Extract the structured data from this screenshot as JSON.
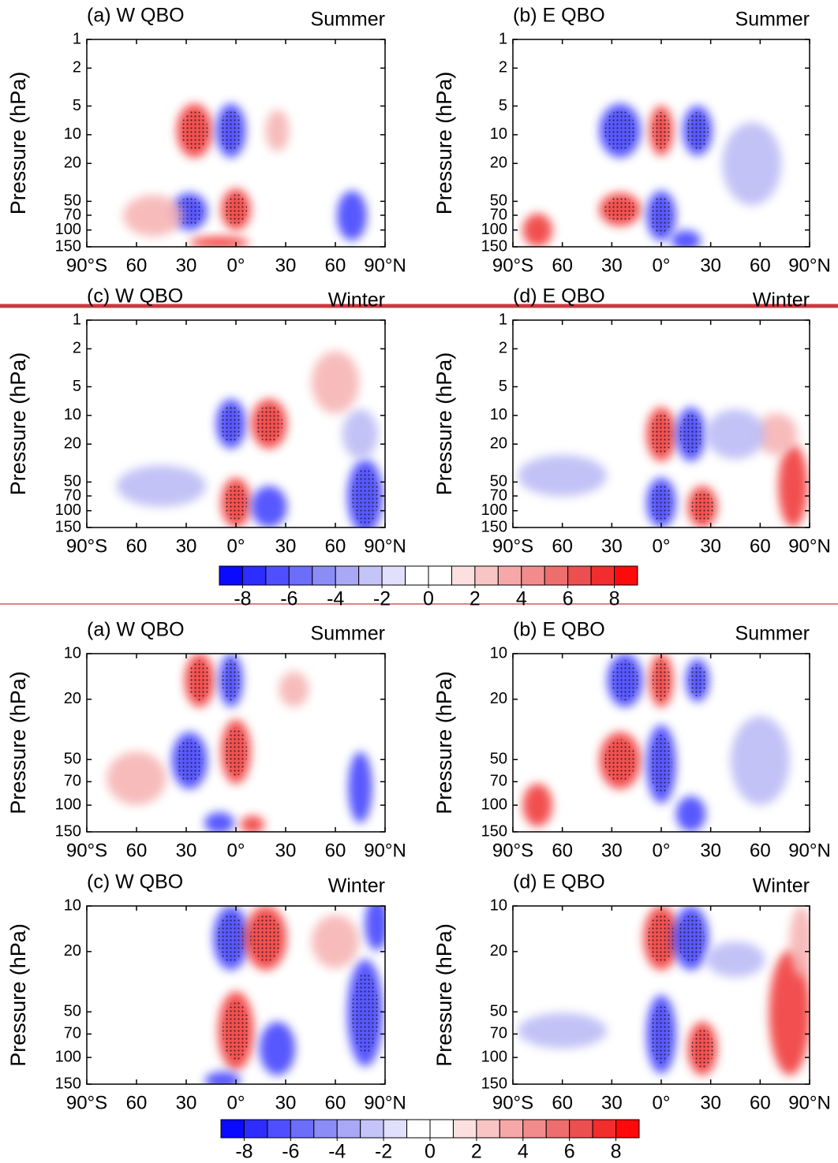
{
  "chart_data": [
    {
      "type": "contour",
      "title": "(a) W QBO",
      "annotation": "Summer",
      "y_label": "Pressure (hPa)",
      "log_y": true,
      "xlim": [
        -90,
        90
      ],
      "xticks": [
        {
          "value": -90,
          "label": "90°S"
        },
        {
          "value": -60,
          "label": "60"
        },
        {
          "value": -30,
          "label": "30"
        },
        {
          "value": 0,
          "label": "0°"
        },
        30,
        60,
        {
          "value": 90,
          "label": "90°N"
        }
      ],
      "ylim": [
        150,
        1
      ],
      "yticks": [
        1,
        2,
        5,
        10,
        20,
        50,
        70,
        100,
        150
      ]
    },
    {
      "type": "contour",
      "title": "(b) E QBO",
      "annotation": "Summer",
      "y_label": "Pressure (hPa)",
      "log_y": true,
      "xlim": [
        -90,
        90
      ],
      "xticks": [
        {
          "value": -90,
          "label": "90°S"
        },
        {
          "value": -60,
          "label": "60"
        },
        {
          "value": -30,
          "label": "30"
        },
        {
          "value": 0,
          "label": "0°"
        },
        30,
        60,
        {
          "value": 90,
          "label": "90°N"
        }
      ],
      "ylim": [
        150,
        1
      ],
      "yticks": [
        1,
        2,
        5,
        10,
        20,
        50,
        70,
        100,
        150
      ]
    },
    {
      "type": "contour",
      "title": "(c) W QBO",
      "annotation": "Winter",
      "y_label": "Pressure (hPa)",
      "log_y": true,
      "xlim": [
        -90,
        90
      ],
      "xticks": [
        {
          "value": -90,
          "label": "90°S"
        },
        {
          "value": -60,
          "label": "60"
        },
        {
          "value": -30,
          "label": "30"
        },
        {
          "value": 0,
          "label": "0°"
        },
        30,
        60,
        {
          "value": 90,
          "label": "90°N"
        }
      ],
      "ylim": [
        150,
        1
      ],
      "yticks": [
        1,
        2,
        5,
        10,
        20,
        50,
        70,
        100,
        150
      ]
    },
    {
      "type": "contour",
      "title": "(d) E QBO",
      "annotation": "Winter",
      "y_label": "Pressure (hPa)",
      "log_y": true,
      "xlim": [
        -90,
        90
      ],
      "xticks": [
        {
          "value": -90,
          "label": "90°S"
        },
        {
          "value": -60,
          "label": "60"
        },
        {
          "value": -30,
          "label": "30"
        },
        {
          "value": 0,
          "label": "0°"
        },
        30,
        60,
        {
          "value": 90,
          "label": "90°N"
        }
      ],
      "ylim": [
        150,
        1
      ],
      "yticks": [
        1,
        2,
        5,
        10,
        20,
        50,
        70,
        100,
        150
      ]
    },
    {
      "type": "colorbar",
      "xlim": [
        -9,
        9
      ],
      "xticks": [
        -8,
        -6,
        -4,
        -2,
        0,
        2,
        4,
        6,
        8
      ],
      "colors": [
        "#0a0aff",
        "#2d2dff",
        "#4f4fff",
        "#6d6dfb",
        "#8c8cf7",
        "#a8a8f6",
        "#c4c4f9",
        "#e0e0fc",
        "#ffffff",
        "#ffffff",
        "#fce0e0",
        "#f9c4c4",
        "#f6a8a8",
        "#f28c8c",
        "#ee6e6e",
        "#ec4f4f",
        "#f22d2d",
        "#ff0a0a"
      ]
    },
    {
      "type": "contour",
      "title": "(a) W QBO",
      "annotation": "Summer",
      "y_label": "Pressure (hPa)",
      "log_y": true,
      "xlim": [
        -90,
        90
      ],
      "xticks": [
        {
          "value": -90,
          "label": "90°S"
        },
        {
          "value": -60,
          "label": "60"
        },
        {
          "value": -30,
          "label": "30"
        },
        {
          "value": 0,
          "label": "0°"
        },
        30,
        60,
        {
          "value": 90,
          "label": "90°N"
        }
      ],
      "ylim": [
        150,
        10
      ],
      "yticks": [
        10,
        20,
        50,
        70,
        100,
        150
      ]
    },
    {
      "type": "contour",
      "title": "(b) E QBO",
      "annotation": "Summer",
      "y_label": "Pressure (hPa)",
      "log_y": true,
      "xlim": [
        -90,
        90
      ],
      "xticks": [
        {
          "value": -90,
          "label": "90°S"
        },
        {
          "value": -60,
          "label": "60"
        },
        {
          "value": -30,
          "label": "30"
        },
        {
          "value": 0,
          "label": "0°"
        },
        30,
        60,
        {
          "value": 90,
          "label": "90°N"
        }
      ],
      "ylim": [
        150,
        10
      ],
      "yticks": [
        10,
        20,
        50,
        70,
        100,
        150
      ]
    },
    {
      "type": "contour",
      "title": "(c) W QBO",
      "annotation": "Winter",
      "y_label": "Pressure (hPa)",
      "log_y": true,
      "xlim": [
        -90,
        90
      ],
      "xticks": [
        {
          "value": -90,
          "label": "90°S"
        },
        {
          "value": -60,
          "label": "60"
        },
        {
          "value": -30,
          "label": "30"
        },
        {
          "value": 0,
          "label": "0°"
        },
        30,
        60,
        {
          "value": 90,
          "label": "90°N"
        }
      ],
      "ylim": [
        150,
        10
      ],
      "yticks": [
        10,
        20,
        50,
        70,
        100,
        150
      ]
    },
    {
      "type": "contour",
      "title": "(d) E QBO",
      "annotation": "Winter",
      "y_label": "Pressure (hPa)",
      "log_y": true,
      "xlim": [
        -90,
        90
      ],
      "xticks": [
        {
          "value": -90,
          "label": "90°S"
        },
        {
          "value": -60,
          "label": "60"
        },
        {
          "value": -30,
          "label": "30"
        },
        {
          "value": 0,
          "label": "0°"
        },
        30,
        60,
        {
          "value": 90,
          "label": "90°N"
        }
      ],
      "ylim": [
        150,
        10
      ],
      "yticks": [
        10,
        20,
        50,
        70,
        100,
        150
      ]
    },
    {
      "type": "colorbar",
      "xlim": [
        -9,
        9
      ],
      "xticks": [
        -8,
        -6,
        -4,
        -2,
        0,
        2,
        4,
        6,
        8
      ],
      "colors": [
        "#0a0aff",
        "#2d2dff",
        "#4f4fff",
        "#6d6dfb",
        "#8c8cf7",
        "#a8a8f6",
        "#c4c4f9",
        "#e0e0fc",
        "#ffffff",
        "#ffffff",
        "#fce0e0",
        "#f9c4c4",
        "#f6a8a8",
        "#f28c8c",
        "#ee6e6e",
        "#ec4f4f",
        "#f22d2d",
        "#ff0a0a"
      ]
    }
  ]
}
